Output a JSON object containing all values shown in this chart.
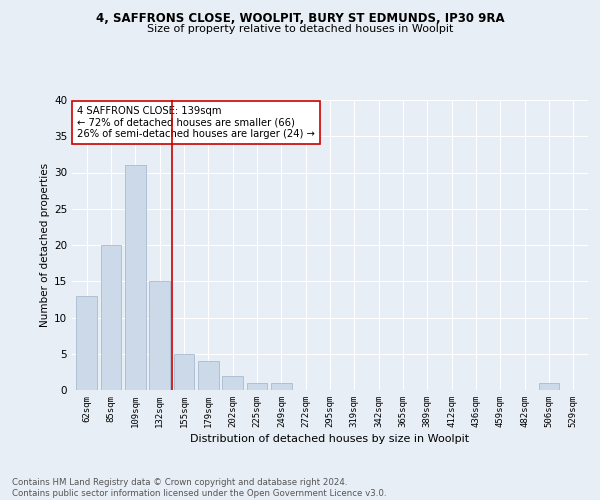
{
  "title1": "4, SAFFRONS CLOSE, WOOLPIT, BURY ST EDMUNDS, IP30 9RA",
  "title2": "Size of property relative to detached houses in Woolpit",
  "xlabel": "Distribution of detached houses by size in Woolpit",
  "ylabel": "Number of detached properties",
  "categories": [
    "62sqm",
    "85sqm",
    "109sqm",
    "132sqm",
    "155sqm",
    "179sqm",
    "202sqm",
    "225sqm",
    "249sqm",
    "272sqm",
    "295sqm",
    "319sqm",
    "342sqm",
    "365sqm",
    "389sqm",
    "412sqm",
    "436sqm",
    "459sqm",
    "482sqm",
    "506sqm",
    "529sqm"
  ],
  "values": [
    13,
    20,
    31,
    15,
    5,
    4,
    2,
    1,
    1,
    0,
    0,
    0,
    0,
    0,
    0,
    0,
    0,
    0,
    0,
    1,
    0
  ],
  "bar_color": "#ccd9e8",
  "bar_edge_color": "#aabbd0",
  "vline_x": 3.5,
  "vline_color": "#cc0000",
  "annotation_text": "4 SAFFRONS CLOSE: 139sqm\n← 72% of detached houses are smaller (66)\n26% of semi-detached houses are larger (24) →",
  "annotation_box_color": "#ffffff",
  "annotation_box_edge": "#cc0000",
  "ylim": [
    0,
    40
  ],
  "yticks": [
    0,
    5,
    10,
    15,
    20,
    25,
    30,
    35,
    40
  ],
  "footer": "Contains HM Land Registry data © Crown copyright and database right 2024.\nContains public sector information licensed under the Open Government Licence v3.0.",
  "bg_color": "#e8eef5",
  "grid_color": "#ffffff"
}
